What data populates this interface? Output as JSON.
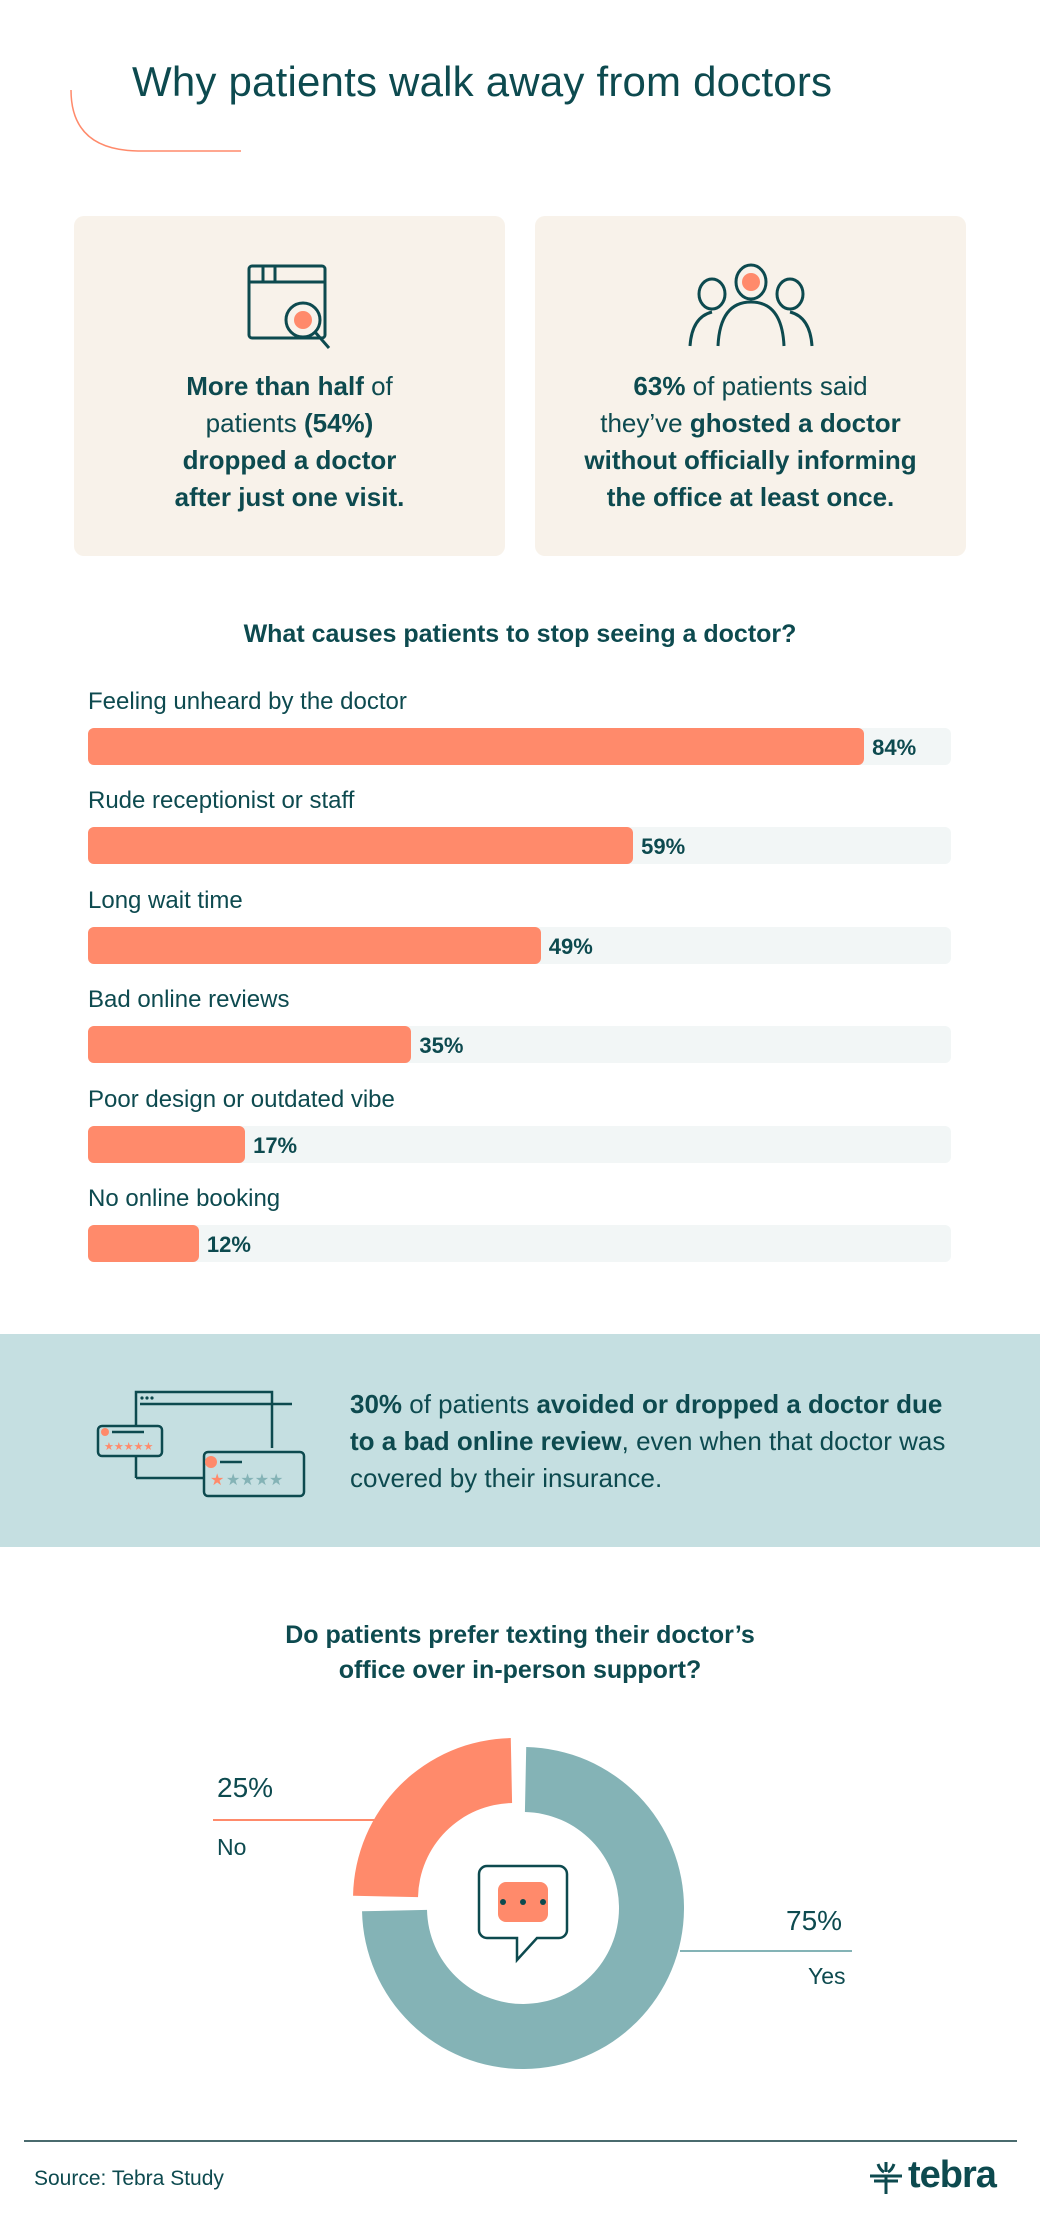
{
  "header": {
    "title": "Why patients walk away from doctors"
  },
  "cards": [
    {
      "icon": "browser-search-icon",
      "lines": [
        [
          {
            "t": "More than half",
            "b": true
          },
          {
            "t": " of",
            "b": false
          }
        ],
        [
          {
            "t": "patients ",
            "b": false
          },
          {
            "t": "(54%)",
            "b": true
          }
        ],
        [
          {
            "t": "dropped a doctor",
            "b": true
          }
        ],
        [
          {
            "t": "after just one visit.",
            "b": true
          }
        ]
      ]
    },
    {
      "icon": "people-group-icon",
      "lines": [
        [
          {
            "t": "63%",
            "b": true
          },
          {
            "t": " of patients said",
            "b": false
          }
        ],
        [
          {
            "t": "they’ve ",
            "b": false
          },
          {
            "t": "ghosted a doctor",
            "b": true
          }
        ],
        [
          {
            "t": "without officially informing",
            "b": true
          }
        ],
        [
          {
            "t": "the office at least once.",
            "b": true
          }
        ]
      ]
    }
  ],
  "colors": {
    "primary": "#0d4a4f",
    "coral": "#ff8a6b",
    "teal": "#84b3b6",
    "band": "#c5dfe1",
    "card": "#f8f2ea",
    "track": "#f2f6f6"
  },
  "chart_data": [
    {
      "type": "bar",
      "orientation": "horizontal",
      "title": "What causes patients to stop seeing a doctor?",
      "categories": [
        "Feeling unheard by the doctor",
        "Rude receptionist or staff",
        "Long wait time",
        "Bad online reviews",
        "Poor design or outdated vibe",
        "No online booking"
      ],
      "values": [
        84,
        59,
        49,
        35,
        17,
        12
      ],
      "labels": [
        "84%",
        "59%",
        "49%",
        "35%",
        "17%",
        "12%"
      ],
      "unit": "%"
    },
    {
      "type": "pie",
      "donut": true,
      "title": "Do patients prefer texting their doctor’s office over in-person support?",
      "title_lines": [
        "Do patients prefer texting their doctor’s",
        "office over in-person support?"
      ],
      "slices": [
        {
          "name": "No",
          "value": 25,
          "label": "25%",
          "color": "#ff8a6b"
        },
        {
          "name": "Yes",
          "value": 75,
          "label": "75%",
          "color": "#84b3b6"
        }
      ],
      "center_icon": "chat-bubble-typing-icon"
    }
  ],
  "band": {
    "icon": "online-review-windows-icon",
    "segments": [
      {
        "t": "30%",
        "b": true
      },
      {
        "t": " of patients ",
        "b": false
      },
      {
        "t": "avoided or dropped a doctor due to a bad online review",
        "b": true
      },
      {
        "t": ", even when that doctor was covered by their insurance.",
        "b": false
      }
    ]
  },
  "footer": {
    "source": "Source: Tebra Study",
    "logo_text": "tebra"
  }
}
